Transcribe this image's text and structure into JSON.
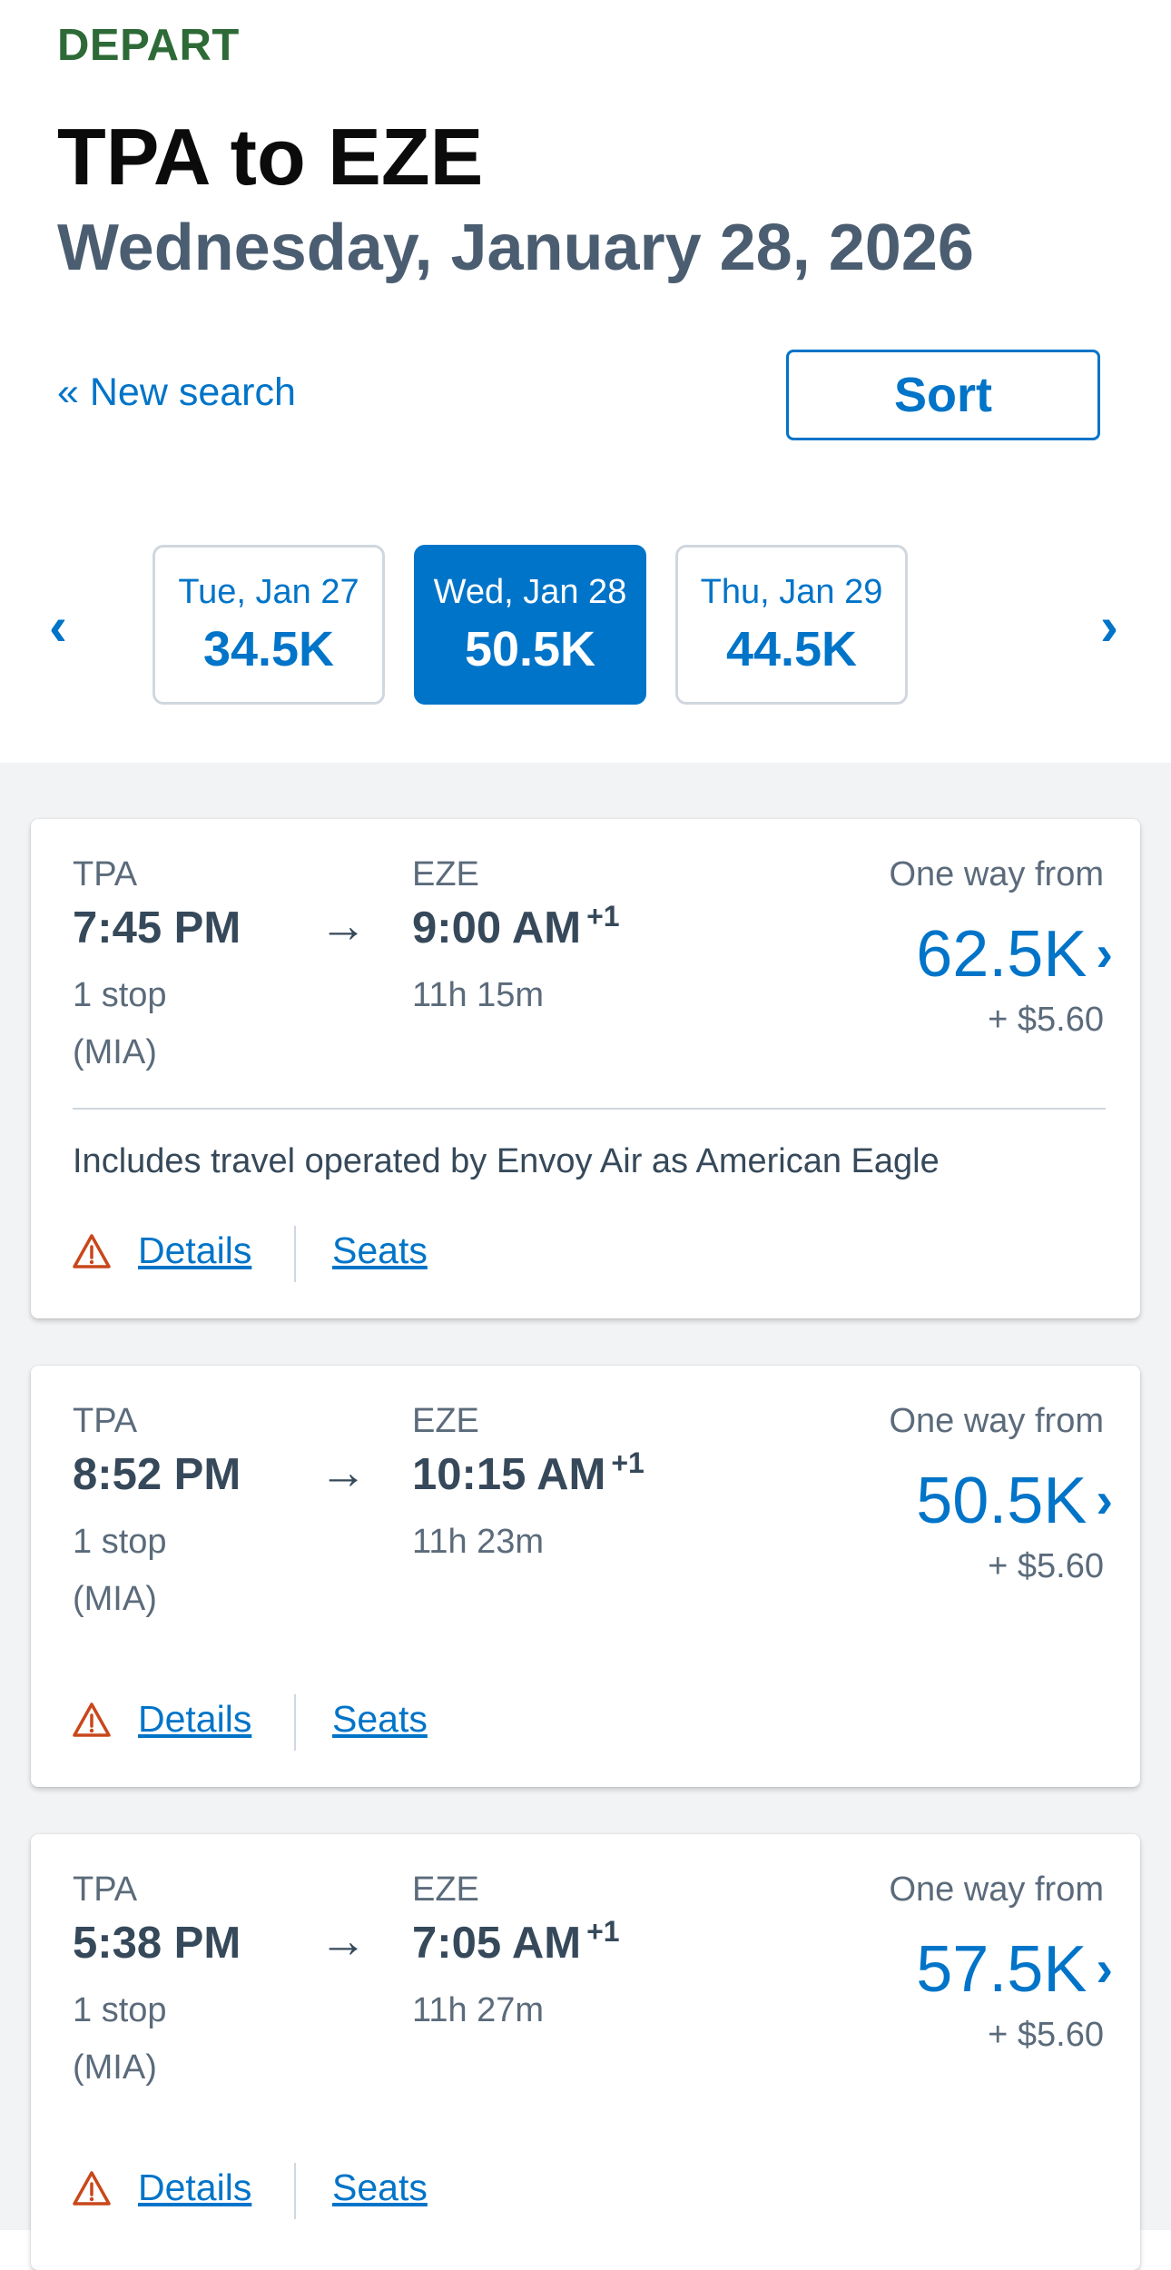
{
  "header": {
    "depart_label": "DEPART",
    "route": "TPA to EZE",
    "date": "Wednesday, January 28, 2026",
    "new_search": "« New search",
    "sort_label": "Sort"
  },
  "date_nav": {
    "prev": "‹",
    "next": "›",
    "tabs": [
      {
        "day": "Tue, Jan 27",
        "price": "34.5K",
        "selected": false
      },
      {
        "day": "Wed, Jan 28",
        "price": "50.5K",
        "selected": true
      },
      {
        "day": "Thu, Jan 29",
        "price": "44.5K",
        "selected": false
      }
    ]
  },
  "flights": [
    {
      "origin": "TPA",
      "depart_time": "7:45 PM",
      "destination": "EZE",
      "arrive_time": "9:00 AM",
      "day_offset": "+1",
      "stops": "1 stop",
      "via": "(MIA)",
      "duration": "11h 15m",
      "price_label": "One way from",
      "price": "62.5K",
      "fee": "+ $5.60",
      "operated_by": "Includes travel operated by Envoy Air as American Eagle",
      "details_label": "Details",
      "seats_label": "Seats"
    },
    {
      "origin": "TPA",
      "depart_time": "8:52 PM",
      "destination": "EZE",
      "arrive_time": "10:15 AM",
      "day_offset": "+1",
      "stops": "1 stop",
      "via": "(MIA)",
      "duration": "11h 23m",
      "price_label": "One way from",
      "price": "50.5K",
      "fee": "+ $5.60",
      "details_label": "Details",
      "seats_label": "Seats"
    },
    {
      "origin": "TPA",
      "depart_time": "5:38 PM",
      "destination": "EZE",
      "arrive_time": "7:05 AM",
      "day_offset": "+1",
      "stops": "1 stop",
      "via": "(MIA)",
      "duration": "11h 27m",
      "price_label": "One way from",
      "price": "57.5K",
      "fee": "+ $5.60",
      "details_label": "Details",
      "seats_label": "Seats"
    }
  ],
  "icons": {
    "arrow": "→",
    "price_chevron": "›",
    "warning": "warning-triangle-icon"
  },
  "colors": {
    "accent": "#0074c8",
    "depart_green": "#2d6a37",
    "warning": "#c9471b",
    "text": "#36495a"
  }
}
